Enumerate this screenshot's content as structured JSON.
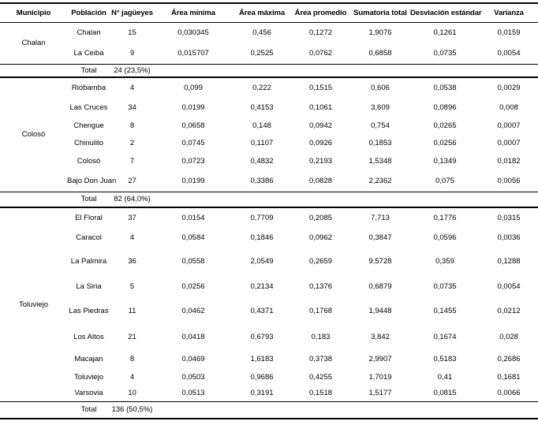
{
  "table": {
    "columns": [
      "Municipio",
      "Población",
      "N° jagüeyes",
      "Área mínima",
      "Área máxima",
      "Área promedio",
      "Sumatoria total",
      "Desviación estándar",
      "Varianza"
    ],
    "sections": [
      {
        "municipio": "Chalan",
        "rows": [
          {
            "cells": [
              "Chalan",
              "15",
              "0,030345",
              "0,456",
              "0,1272",
              "1,9076",
              "0,1261",
              "0,0159"
            ]
          },
          {
            "cells": [
              "La Ceiba",
              "9",
              "0,015707",
              "0,2525",
              "0,0762",
              "0,6858",
              "0,0735",
              "0,0054"
            ]
          }
        ],
        "total_label": "Total",
        "total_value": "24 (23,5%)"
      },
      {
        "municipio": "Colosó",
        "rows": [
          {
            "cells": [
              "Riobamba",
              "4",
              "0,099",
              "0,222",
              "0,1515",
              "0,606",
              "0,0538",
              "0,0029"
            ]
          },
          {
            "cells": [
              "Las Cruces",
              "34",
              "0,0199",
              "0,4153",
              "0,1061",
              "3,609",
              "0,0896",
              "0,008"
            ]
          },
          {
            "cells": [
              "Chengue",
              "8",
              "0,0658",
              "0,148",
              "0,0942",
              "0,754",
              "0,0265",
              "0,0007"
            ]
          },
          {
            "cells": [
              "Chinulito",
              "2",
              "0,0745",
              "0,1107",
              "0,0926",
              "0,1853",
              "0,0256",
              "0,0007"
            ]
          },
          {
            "cells": [
              "Colosó",
              "7",
              "0,0723",
              "0,4832",
              "0,2193",
              "1,5348",
              "0,1349",
              "0,0182"
            ]
          },
          {
            "cells": [
              "Bajo Don Juan",
              "27",
              "0,0199",
              "0,3386",
              "0,0828",
              "2,2362",
              "0,075",
              "0,0056"
            ]
          }
        ],
        "total_label": "Total",
        "total_value": "82 (64,0%)"
      },
      {
        "municipio": "Toluviejo",
        "rows": [
          {
            "cells": [
              "El Floral",
              "37",
              "0,0154",
              "0,7709",
              "0,2085",
              "7,713",
              "0,1776",
              "0,0315"
            ]
          },
          {
            "cells": [
              "Caracol",
              "4",
              "0,0584",
              "0,1846",
              "0,0962",
              "0,3847",
              "0,0596",
              "0,0036"
            ]
          },
          {
            "cells": [
              "La Palmira",
              "36",
              "0,0558",
              "2,0549",
              "0,2659",
              "9,5728",
              "0,359",
              "0,1288"
            ]
          },
          {
            "cells": [
              "La Siria",
              "5",
              "0,0256",
              "0,2134",
              "0,1376",
              "0,6879",
              "0,0735",
              "0,0054"
            ]
          },
          {
            "cells": [
              "Las Piedras",
              "11",
              "0,0462",
              "0,4371",
              "0,1768",
              "1,9448",
              "0,1455",
              "0,0212"
            ]
          },
          {
            "cells": [
              "Los Altos",
              "21",
              "0,0418",
              "0,6793",
              "0,183",
              "3,842",
              "0,1674",
              "0,028"
            ]
          },
          {
            "cells": [
              "Macajan",
              "8",
              "0,0469",
              "1,6183",
              "0,3738",
              "2,9907",
              "0,5183",
              "0,2686"
            ]
          },
          {
            "cells": [
              "Toluviejo",
              "4",
              "0,0503",
              "0,9686",
              "0,4255",
              "1,7019",
              "0,41",
              "0,1681"
            ]
          },
          {
            "cells": [
              "Varsovia",
              "10",
              "0,0513",
              "0,3191",
              "0,1518",
              "1,5177",
              "0,0815",
              "0,0066"
            ]
          }
        ],
        "total_label": "Total",
        "total_value": "136 (50,5%)"
      }
    ]
  },
  "colors": {
    "text": "#000000",
    "border": "#000000",
    "background": "#ffffff"
  }
}
